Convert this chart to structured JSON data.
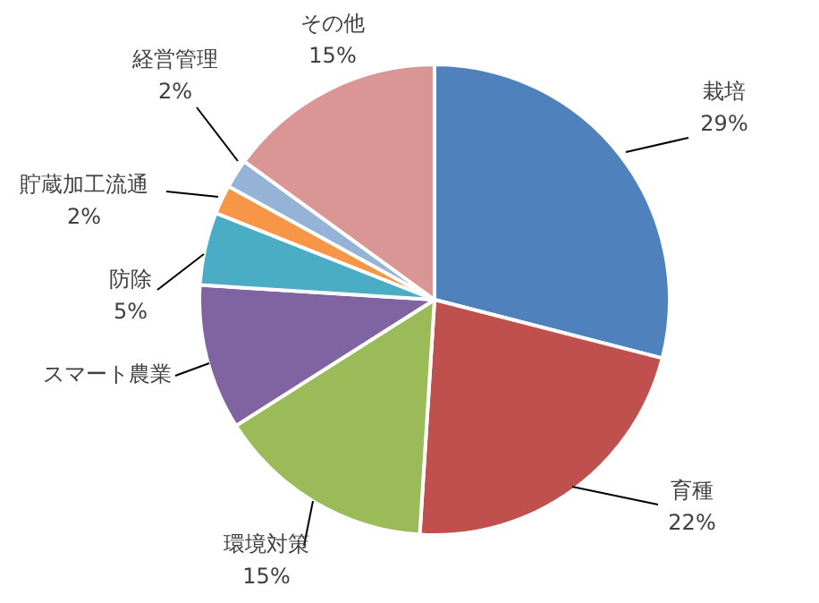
{
  "chart_data": {
    "type": "pie",
    "categories": [
      "栽培",
      "育種",
      "環境対策",
      "スマート農業",
      "防除",
      "貯蔵加工流通",
      "経営管理",
      "その他"
    ],
    "values": [
      29,
      22,
      15,
      10,
      5,
      2,
      2,
      15
    ],
    "value_labels": [
      "29%",
      "22%",
      "15%",
      null,
      "5%",
      "2%",
      "2%",
      "15%"
    ],
    "colors": [
      "#4f81bd",
      "#c0504d",
      "#9bbb59",
      "#8064a2",
      "#4bacc6",
      "#f79646",
      "#95b3d7",
      "#d99694"
    ],
    "legend": false
  }
}
